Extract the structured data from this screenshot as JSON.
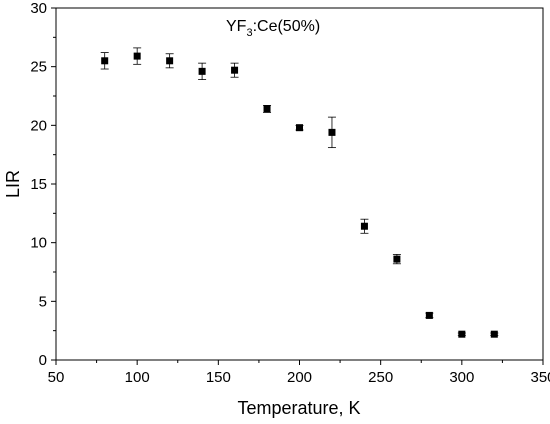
{
  "chart_data": {
    "type": "scatter",
    "title": "",
    "annotation": {
      "main": "YF",
      "sub": "3",
      "rest": ":Ce(50%)"
    },
    "xlabel": "Temperature, K",
    "ylabel": "LIR",
    "xlim": [
      50,
      350
    ],
    "ylim": [
      0,
      30
    ],
    "xticks": [
      50,
      100,
      150,
      200,
      250,
      300,
      350
    ],
    "yticks": [
      0,
      5,
      10,
      15,
      20,
      25,
      30
    ],
    "grid": false,
    "legend": "none",
    "marker": "square",
    "marker_color": "#000000",
    "points": [
      {
        "x": 80,
        "y": 25.5,
        "err": 0.7
      },
      {
        "x": 100,
        "y": 25.9,
        "err": 0.7
      },
      {
        "x": 120,
        "y": 25.5,
        "err": 0.6
      },
      {
        "x": 140,
        "y": 24.6,
        "err": 0.7
      },
      {
        "x": 160,
        "y": 24.7,
        "err": 0.6
      },
      {
        "x": 180,
        "y": 21.4,
        "err": 0.3
      },
      {
        "x": 200,
        "y": 19.8,
        "err": 0.2
      },
      {
        "x": 220,
        "y": 19.4,
        "err": 1.3
      },
      {
        "x": 240,
        "y": 11.4,
        "err": 0.6
      },
      {
        "x": 260,
        "y": 8.6,
        "err": 0.4
      },
      {
        "x": 280,
        "y": 3.8,
        "err": 0.2
      },
      {
        "x": 300,
        "y": 2.2,
        "err": 0.1
      },
      {
        "x": 320,
        "y": 2.2,
        "err": 0.1
      }
    ]
  }
}
